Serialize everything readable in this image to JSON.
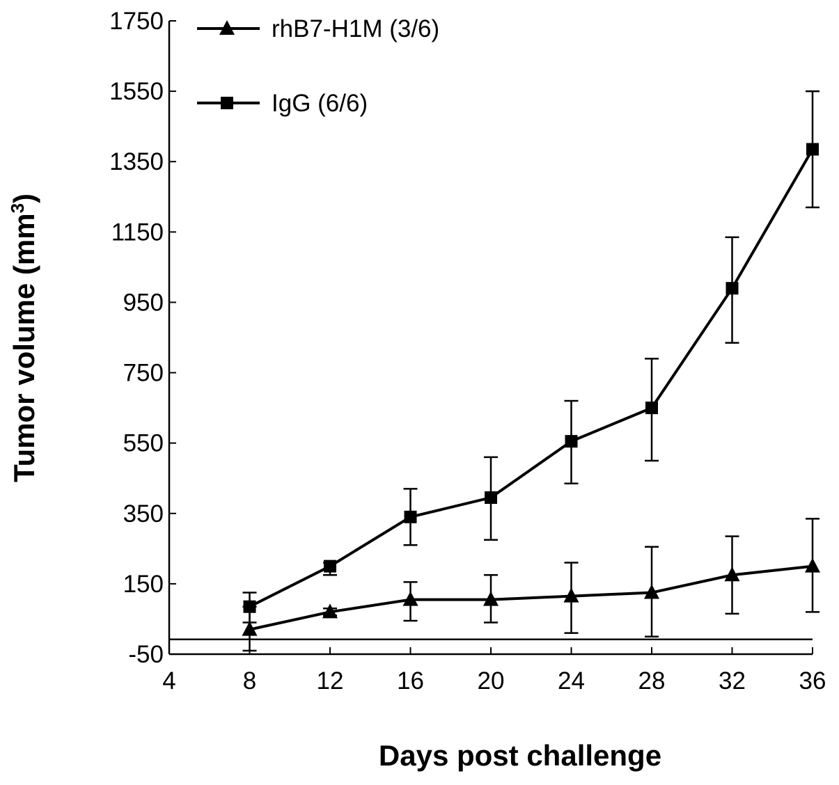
{
  "chart_data": {
    "type": "line",
    "xlabel": "Days post challenge",
    "ylabel_main": "Tumor volume (mm",
    "ylabel_sup": "3",
    "ylabel_close": ")",
    "xlim": [
      4,
      36
    ],
    "ylim": [
      -50,
      1750
    ],
    "xticks": [
      4,
      8,
      12,
      16,
      20,
      24,
      28,
      32,
      36
    ],
    "yticks": [
      -50,
      150,
      350,
      550,
      750,
      950,
      1150,
      1350,
      1550,
      1750
    ],
    "legend_position": "top-left",
    "series": [
      {
        "name": "rhB7-H1M (3/6)",
        "marker": "triangle",
        "color": "#000000",
        "x": [
          8,
          12,
          16,
          20,
          24,
          28,
          32,
          36
        ],
        "y": [
          20,
          70,
          105,
          105,
          115,
          125,
          175,
          200
        ],
        "err_low": [
          60,
          10,
          60,
          65,
          105,
          125,
          110,
          130
        ],
        "err_high": [
          65,
          10,
          50,
          70,
          95,
          130,
          110,
          135
        ]
      },
      {
        "name": "IgG (6/6)",
        "marker": "square",
        "color": "#000000",
        "x": [
          8,
          12,
          16,
          20,
          24,
          28,
          32,
          36
        ],
        "y": [
          85,
          200,
          340,
          395,
          555,
          650,
          990,
          1385
        ],
        "err_low": [
          45,
          25,
          80,
          120,
          120,
          150,
          155,
          165
        ],
        "err_high": [
          40,
          10,
          80,
          115,
          115,
          140,
          145,
          165
        ]
      }
    ]
  }
}
